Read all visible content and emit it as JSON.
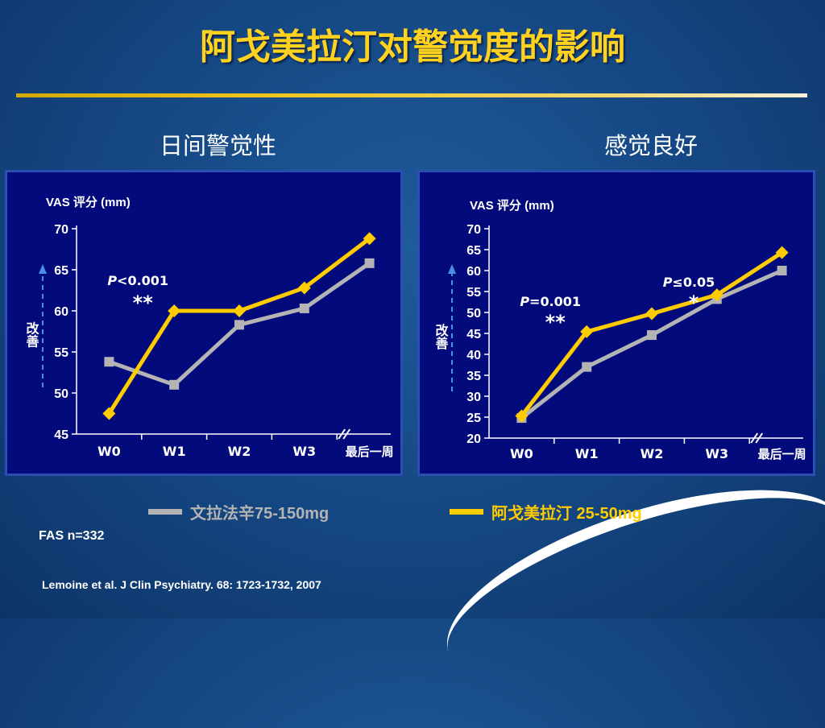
{
  "slide": {
    "title": "阿戈美拉汀对警觉度的影响",
    "fas": "FAS n=332",
    "citation": "Lemoine et al. J Clin Psychiatry. 68: 1723-1732, 2007"
  },
  "legend": [
    {
      "label": "文拉法辛75-150mg",
      "color": "#b4b4b4"
    },
    {
      "label": "阿戈美拉汀 25-50mg",
      "color": "#ffcc00"
    }
  ],
  "colors": {
    "venlafaxine": "#b4b4b4",
    "agomelatine": "#ffcc00",
    "panel": "#030b7c",
    "title": "#ffd21f"
  },
  "chart_data": [
    {
      "type": "line",
      "title": "日间警觉性",
      "ylabel": "VAS 评分 (mm)",
      "side_label": "改善",
      "categories": [
        "W0",
        "W1",
        "W2",
        "W3",
        "最后一周"
      ],
      "ylim": [
        45,
        70
      ],
      "yticks": [
        45,
        50,
        55,
        60,
        65,
        70
      ],
      "axis_break": true,
      "series": [
        {
          "key": "venlafaxine",
          "values": [
            53.8,
            51.0,
            58.3,
            60.3,
            65.8
          ]
        },
        {
          "key": "agomelatine",
          "values": [
            47.5,
            60.0,
            60.0,
            62.8,
            68.8
          ]
        }
      ],
      "annotations": [
        {
          "p_symbol": "P",
          "p_rest": "<0.001",
          "stars": "**",
          "category_index": 1
        }
      ]
    },
    {
      "type": "line",
      "title": "感觉良好",
      "ylabel": "VAS 评分 (mm)",
      "side_label": "改善",
      "categories": [
        "W0",
        "W1",
        "W2",
        "W3",
        "最后一周"
      ],
      "ylim": [
        20,
        70
      ],
      "yticks": [
        20,
        25,
        30,
        35,
        40,
        45,
        50,
        55,
        60,
        65,
        70
      ],
      "axis_break": true,
      "series": [
        {
          "key": "venlafaxine",
          "values": [
            24.8,
            37.0,
            44.6,
            53.2,
            60.0
          ]
        },
        {
          "key": "agomelatine",
          "values": [
            25.3,
            45.4,
            49.7,
            54.2,
            64.3
          ]
        }
      ],
      "annotations": [
        {
          "p_symbol": "P",
          "p_rest": "=0.001",
          "stars": "**",
          "category_index": 1
        },
        {
          "p_symbol": "P",
          "p_rest": "≤0.05",
          "stars": "*",
          "category_index": 2
        }
      ]
    }
  ]
}
